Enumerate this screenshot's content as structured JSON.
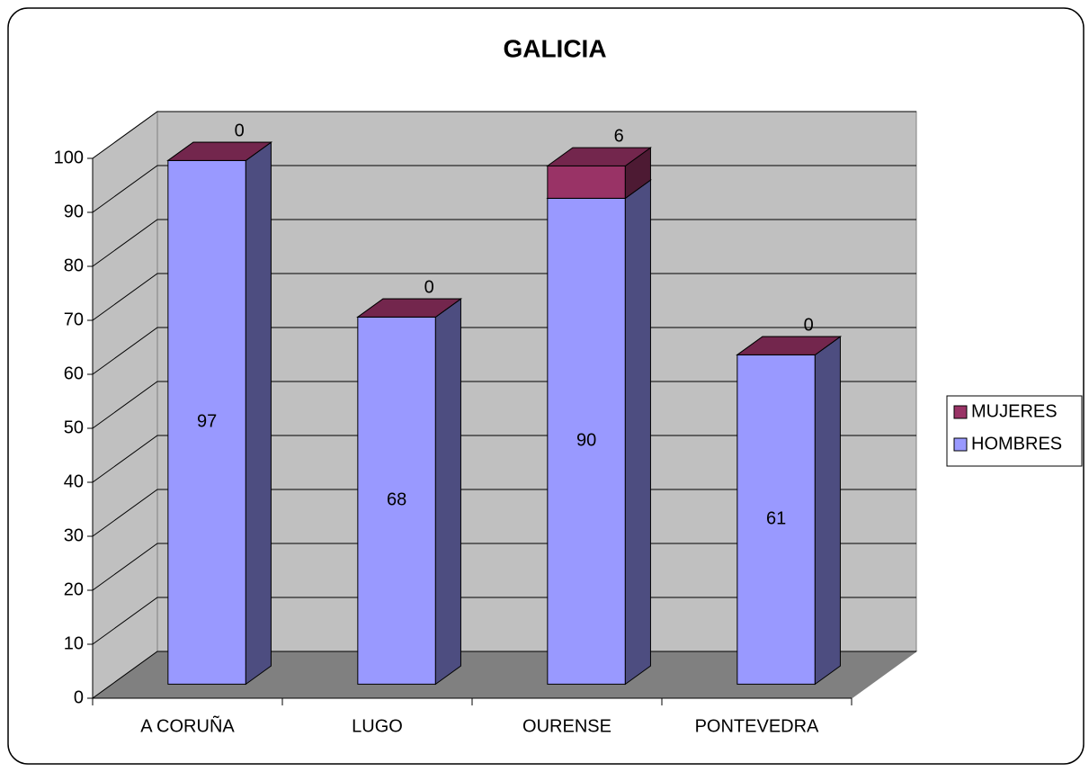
{
  "chart_data": {
    "type": "bar3d_stacked",
    "title": "GALICIA",
    "categories": [
      "A CORUÑA",
      "LUGO",
      "OURENSE",
      "PONTEVEDRA"
    ],
    "series": [
      {
        "name": "HOMBRES",
        "color": "#9999ff",
        "values": [
          97,
          68,
          90,
          61
        ]
      },
      {
        "name": "MUJERES",
        "color": "#993366",
        "values": [
          0,
          0,
          6,
          0
        ]
      }
    ],
    "ylim": [
      0,
      100
    ],
    "yticks": [
      0,
      10,
      20,
      30,
      40,
      50,
      60,
      70,
      80,
      90,
      100
    ],
    "grid": true,
    "legend": "right"
  }
}
